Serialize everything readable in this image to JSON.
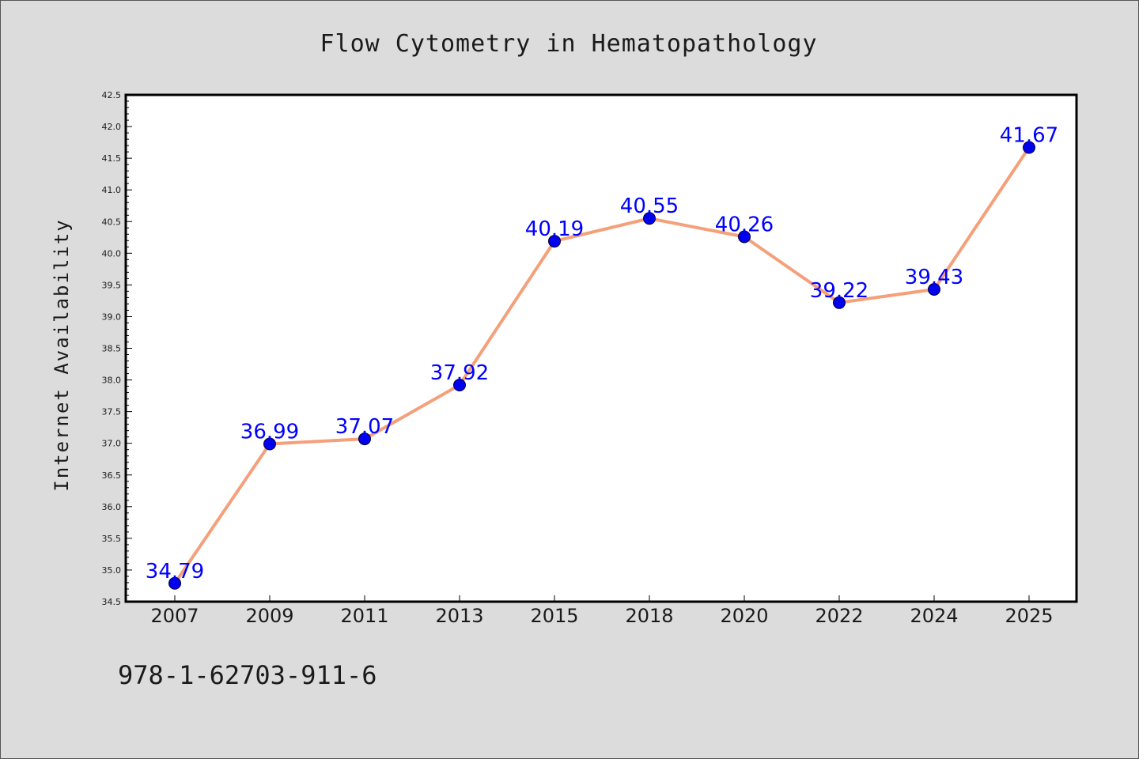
{
  "chart_data": {
    "type": "line",
    "title": "Flow Cytometry in Hematopathology",
    "ylabel": "Internet Availability",
    "xlabel": "",
    "categories": [
      "2007",
      "2009",
      "2011",
      "2013",
      "2015",
      "2018",
      "2020",
      "2022",
      "2024",
      "2025"
    ],
    "series": [
      {
        "values": [
          34.79,
          36.99,
          37.07,
          37.92,
          40.19,
          40.55,
          40.26,
          39.22,
          39.43,
          41.67
        ],
        "labels": [
          "34.79",
          "36.99",
          "37.07",
          "37.92",
          "40.19",
          "40.55",
          "40.26",
          "39.22",
          "39.43",
          "41.67"
        ],
        "line_color": "#f4a07a",
        "marker_color": "#0000ee",
        "label_color": "#0000ff"
      }
    ],
    "ylim": [
      34.5,
      42.5
    ],
    "yticks": [
      "34.5",
      "35.0",
      "35.5",
      "36.0",
      "36.5",
      "37.0",
      "37.5",
      "38.0",
      "38.5",
      "39.0",
      "39.5",
      "40.0",
      "40.5",
      "41.0",
      "41.5",
      "42.0",
      "42.5"
    ],
    "grid": false,
    "legend": "none"
  },
  "footer_note": "978-1-62703-911-6",
  "colors": {
    "background": "#dcdcdc",
    "plot_background": "#ffffff",
    "axis": "#000000"
  }
}
